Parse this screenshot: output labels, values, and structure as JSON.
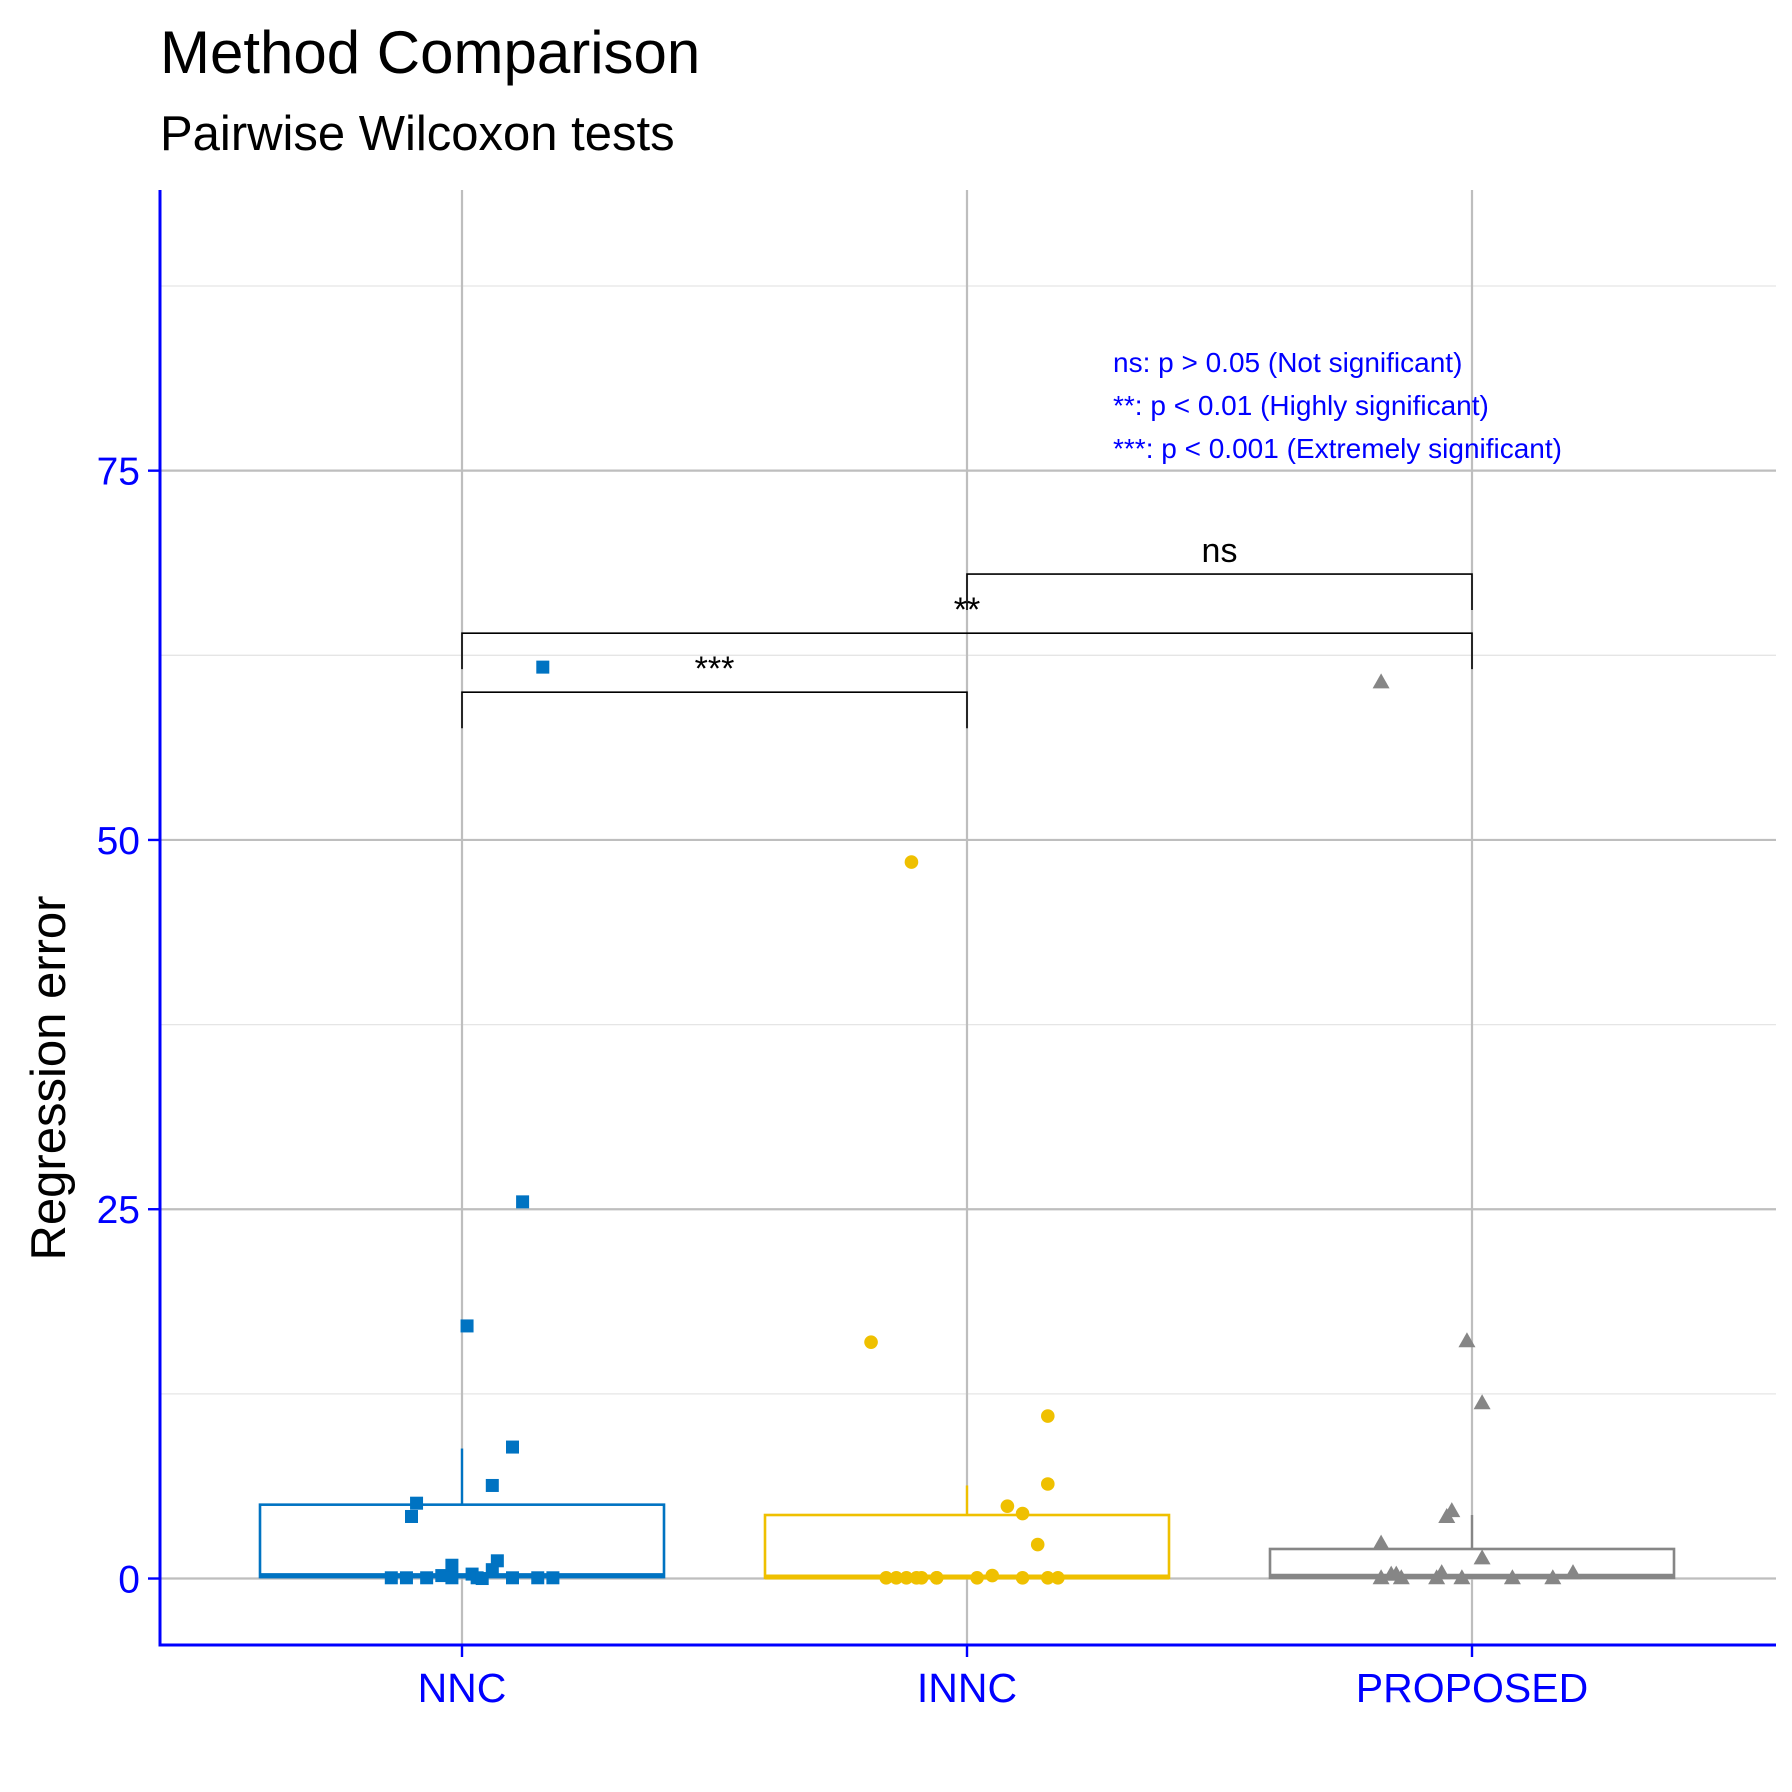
{
  "chart_data": {
    "type": "box",
    "title": "Method Comparison",
    "subtitle": "Pairwise Wilcoxon tests",
    "xlabel": "",
    "ylabel": "Regression error",
    "ylim": [
      -4.5,
      94
    ],
    "yticks": [
      0,
      25,
      50,
      75
    ],
    "categories": [
      "NNC",
      "INNC",
      "PROPOSED"
    ],
    "colors": {
      "NNC": "#0073C2",
      "INNC": "#EFC000",
      "PROPOSED": "#868686",
      "axis": "#0000FF",
      "grid_major": "#BEBEBE",
      "grid_minor": "#E5E5E5"
    },
    "series": [
      {
        "name": "NNC",
        "marker": "square",
        "box": {
          "q1": 0.1,
          "median": 0.2,
          "q3": 5.0,
          "whisker_low": 0.0,
          "whisker_high": 8.8
        },
        "points": [
          {
            "offset": 0.16,
            "y": 61.7
          },
          {
            "offset": 0.12,
            "y": 25.5
          },
          {
            "offset": 0.01,
            "y": 17.1
          },
          {
            "offset": 0.1,
            "y": 8.9
          },
          {
            "offset": 0.06,
            "y": 6.3
          },
          {
            "offset": -0.09,
            "y": 5.1
          },
          {
            "offset": -0.1,
            "y": 4.2
          },
          {
            "offset": 0.07,
            "y": 1.2
          },
          {
            "offset": -0.02,
            "y": 0.9
          },
          {
            "offset": 0.06,
            "y": 0.6
          },
          {
            "offset": 0.02,
            "y": 0.3
          },
          {
            "offset": -0.04,
            "y": 0.2
          },
          {
            "offset": -0.14,
            "y": 0.05
          },
          {
            "offset": -0.11,
            "y": 0.05
          },
          {
            "offset": -0.07,
            "y": 0.05
          },
          {
            "offset": -0.02,
            "y": 0.05
          },
          {
            "offset": 0.03,
            "y": 0.05
          },
          {
            "offset": 0.1,
            "y": 0.05
          },
          {
            "offset": 0.15,
            "y": 0.05
          },
          {
            "offset": 0.18,
            "y": 0.05
          },
          {
            "offset": 0.04,
            "y": 0.0
          }
        ]
      },
      {
        "name": "INNC",
        "marker": "circle",
        "box": {
          "q1": 0.05,
          "median": 0.1,
          "q3": 4.3,
          "whisker_low": 0.0,
          "whisker_high": 6.3
        },
        "points": [
          {
            "offset": -0.11,
            "y": 48.5
          },
          {
            "offset": -0.19,
            "y": 16.0
          },
          {
            "offset": 0.16,
            "y": 11.0
          },
          {
            "offset": 0.16,
            "y": 6.4
          },
          {
            "offset": 0.08,
            "y": 4.9
          },
          {
            "offset": 0.11,
            "y": 4.4
          },
          {
            "offset": 0.14,
            "y": 2.3
          },
          {
            "offset": 0.05,
            "y": 0.2
          },
          {
            "offset": -0.16,
            "y": 0.05
          },
          {
            "offset": -0.14,
            "y": 0.05
          },
          {
            "offset": -0.12,
            "y": 0.05
          },
          {
            "offset": -0.1,
            "y": 0.05
          },
          {
            "offset": -0.09,
            "y": 0.05
          },
          {
            "offset": -0.06,
            "y": 0.05
          },
          {
            "offset": -0.06,
            "y": 0.05
          },
          {
            "offset": 0.02,
            "y": 0.05
          },
          {
            "offset": 0.11,
            "y": 0.05
          },
          {
            "offset": 0.16,
            "y": 0.05
          },
          {
            "offset": 0.18,
            "y": 0.05
          }
        ]
      },
      {
        "name": "PROPOSED",
        "marker": "triangle",
        "box": {
          "q1": 0.05,
          "median": 0.15,
          "q3": 2.0,
          "whisker_low": 0.0,
          "whisker_high": 4.3
        },
        "points": [
          {
            "offset": -0.18,
            "y": 60.7
          },
          {
            "offset": -0.01,
            "y": 16.1
          },
          {
            "offset": 0.02,
            "y": 11.9
          },
          {
            "offset": -0.04,
            "y": 4.6
          },
          {
            "offset": -0.05,
            "y": 4.2
          },
          {
            "offset": -0.18,
            "y": 2.4
          },
          {
            "offset": 0.02,
            "y": 1.4
          },
          {
            "offset": -0.16,
            "y": 0.3
          },
          {
            "offset": -0.15,
            "y": 0.3
          },
          {
            "offset": -0.06,
            "y": 0.4
          },
          {
            "offset": 0.2,
            "y": 0.4
          },
          {
            "offset": -0.18,
            "y": 0.05
          },
          {
            "offset": -0.14,
            "y": 0.05
          },
          {
            "offset": -0.07,
            "y": 0.05
          },
          {
            "offset": -0.02,
            "y": 0.05
          },
          {
            "offset": 0.08,
            "y": 0.05
          },
          {
            "offset": 0.16,
            "y": 0.05
          }
        ]
      }
    ],
    "comparisons": [
      {
        "group1": "NNC",
        "group2": "INNC",
        "label": "***",
        "y": 60.0
      },
      {
        "group1": "NNC",
        "group2": "PROPOSED",
        "label": "**",
        "y": 64.0
      },
      {
        "group1": "INNC",
        "group2": "PROPOSED",
        "label": "ns",
        "y": 68.0
      }
    ],
    "annotations": [
      "ns: p > 0.05 (Not significant)",
      "**: p < 0.01 (Highly significant)",
      "***: p < 0.001  (Extremely significant)"
    ]
  }
}
